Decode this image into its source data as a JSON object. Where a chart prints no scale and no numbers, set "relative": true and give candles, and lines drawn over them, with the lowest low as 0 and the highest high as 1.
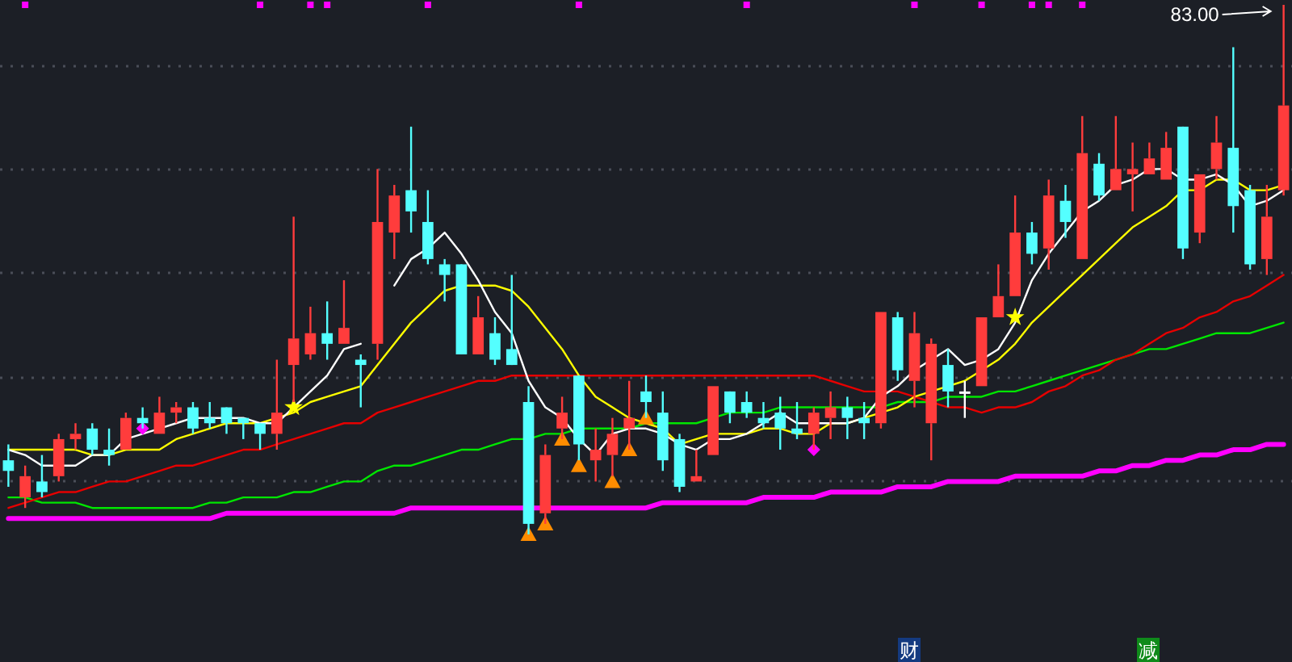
{
  "chart_data": {
    "type": "candlestick",
    "relative": true,
    "grid": "y",
    "categories": [
      null,
      null,
      null,
      null,
      null,
      null,
      null,
      null,
      null,
      null,
      null,
      null,
      null,
      null,
      null,
      null,
      null,
      null,
      null,
      null,
      null,
      null,
      null,
      null,
      null,
      null,
      null,
      null,
      null,
      null,
      null,
      null,
      null,
      null,
      null,
      null,
      null,
      null,
      null,
      null,
      null,
      null,
      null,
      null,
      null,
      null,
      null,
      null,
      null,
      null,
      null,
      null,
      null,
      null,
      null,
      null,
      null,
      null,
      null,
      null,
      null,
      null,
      null,
      null,
      null,
      null,
      null,
      null,
      null,
      null,
      null,
      null,
      null,
      null,
      null,
      null,
      null
    ],
    "ohlc": [
      [
        0.14,
        0.17,
        0.09,
        0.12
      ],
      [
        0.07,
        0.13,
        0.05,
        0.11
      ],
      [
        0.1,
        0.15,
        0.07,
        0.08
      ],
      [
        0.11,
        0.19,
        0.1,
        0.18
      ],
      [
        0.18,
        0.21,
        0.16,
        0.19
      ],
      [
        0.2,
        0.21,
        0.15,
        0.16
      ],
      [
        0.16,
        0.2,
        0.13,
        0.15
      ],
      [
        0.16,
        0.23,
        0.16,
        0.22
      ],
      [
        0.22,
        0.24,
        0.2,
        0.21
      ],
      [
        0.19,
        0.26,
        0.19,
        0.23
      ],
      [
        0.23,
        0.25,
        0.21,
        0.24
      ],
      [
        0.24,
        0.25,
        0.19,
        0.2
      ],
      [
        0.22,
        0.25,
        0.2,
        0.21
      ],
      [
        0.24,
        0.24,
        0.19,
        0.21
      ],
      [
        0.22,
        0.22,
        0.18,
        0.21
      ],
      [
        0.21,
        0.21,
        0.16,
        0.19
      ],
      [
        0.19,
        0.33,
        0.16,
        0.23
      ],
      [
        0.32,
        0.6,
        0.25,
        0.37
      ],
      [
        0.34,
        0.43,
        0.33,
        0.38
      ],
      [
        0.38,
        0.44,
        0.33,
        0.36
      ],
      [
        0.36,
        0.48,
        0.36,
        0.39
      ],
      [
        0.33,
        0.34,
        0.24,
        0.32
      ],
      [
        0.36,
        0.69,
        0.33,
        0.59
      ],
      [
        0.57,
        0.66,
        0.52,
        0.64
      ],
      [
        0.65,
        0.77,
        0.57,
        0.61
      ],
      [
        0.59,
        0.65,
        0.51,
        0.52
      ],
      [
        0.51,
        0.52,
        0.44,
        0.49
      ],
      [
        0.51,
        0.51,
        0.34,
        0.34
      ],
      [
        0.34,
        0.45,
        0.34,
        0.41
      ],
      [
        0.38,
        0.41,
        0.32,
        0.33
      ],
      [
        0.35,
        0.49,
        0.32,
        0.32
      ],
      [
        0.25,
        0.28,
        0,
        0.02
      ],
      [
        0.04,
        0.17,
        0.02,
        0.15
      ],
      [
        0.2,
        0.26,
        0.18,
        0.23
      ],
      [
        0.3,
        0.3,
        0.14,
        0.17
      ],
      [
        0.14,
        0.2,
        0.1,
        0.16
      ],
      [
        0.15,
        0.22,
        0.11,
        0.19
      ],
      [
        0.2,
        0.29,
        0.16,
        0.22
      ],
      [
        0.27,
        0.3,
        0.22,
        0.25
      ],
      [
        0.23,
        0.27,
        0.12,
        0.14
      ],
      [
        0.18,
        0.19,
        0.08,
        0.09
      ],
      [
        0.1,
        0.16,
        0.1,
        0.11
      ],
      [
        0.15,
        0.28,
        0.15,
        0.28
      ],
      [
        0.27,
        0.27,
        0.21,
        0.23
      ],
      [
        0.25,
        0.27,
        0.22,
        0.23
      ],
      [
        0.22,
        0.25,
        0.2,
        0.21
      ],
      [
        0.23,
        0.26,
        0.16,
        0.2
      ],
      [
        0.2,
        0.25,
        0.18,
        0.19
      ],
      [
        0.19,
        0.24,
        0.16,
        0.23
      ],
      [
        0.22,
        0.27,
        0.18,
        0.24
      ],
      [
        0.24,
        0.26,
        0.18,
        0.22
      ],
      [
        0.22,
        0.25,
        0.18,
        0.21
      ],
      [
        0.21,
        0.42,
        0.2,
        0.42
      ],
      [
        0.41,
        0.42,
        0.29,
        0.31
      ],
      [
        0.29,
        0.42,
        0.24,
        0.38
      ],
      [
        0.21,
        0.37,
        0.14,
        0.36
      ],
      [
        0.32,
        0.35,
        0.24,
        0.27
      ],
      [
        0.27,
        0.29,
        0.22,
        0.27
      ],
      [
        0.28,
        0.41,
        0.28,
        0.41
      ],
      [
        0.41,
        0.51,
        0.41,
        0.45
      ],
      [
        0.45,
        0.64,
        0.45,
        0.57
      ],
      [
        0.57,
        0.59,
        0.51,
        0.53
      ],
      [
        0.54,
        0.67,
        0.5,
        0.64
      ],
      [
        0.63,
        0.66,
        0.56,
        0.59
      ],
      [
        0.52,
        0.79,
        0.52,
        0.72
      ],
      [
        0.7,
        0.72,
        0.63,
        0.64
      ],
      [
        0.65,
        0.79,
        0.65,
        0.69
      ],
      [
        0.68,
        0.74,
        0.61,
        0.69
      ],
      [
        0.68,
        0.74,
        0.68,
        0.71
      ],
      [
        0.67,
        0.76,
        0.67,
        0.73
      ],
      [
        0.77,
        0.77,
        0.52,
        0.54
      ],
      [
        0.57,
        0.68,
        0.55,
        0.68
      ],
      [
        0.69,
        0.79,
        0.67,
        0.74
      ],
      [
        0.73,
        0.92,
        0.57,
        0.62
      ],
      [
        0.65,
        0.66,
        0.5,
        0.51
      ],
      [
        0.52,
        0.66,
        0.49,
        0.6
      ],
      [
        0.65,
        1,
        0.64,
        0.81
      ]
    ],
    "colors": [
      "#54ffff",
      "#ff3c3c",
      "#54ffff",
      "#ff3c3c",
      "#ff3c3c",
      "#54ffff",
      "#54ffff",
      "#ff3c3c",
      "#54ffff",
      "#ff3c3c",
      "#ff3c3c",
      "#54ffff",
      "#54ffff",
      "#54ffff",
      "#54ffff",
      "#54ffff",
      "#ff3c3c",
      "#ff3c3c",
      "#ff3c3c",
      "#54ffff",
      "#ff3c3c",
      "#54ffff",
      "#ff3c3c",
      "#ff3c3c",
      "#54ffff",
      "#54ffff",
      "#54ffff",
      "#54ffff",
      "#ff3c3c",
      "#54ffff",
      "#54ffff",
      "#54ffff",
      "#ff3c3c",
      "#ff3c3c",
      "#54ffff",
      "#ff3c3c",
      "#ff3c3c",
      "#ff3c3c",
      "#54ffff",
      "#54ffff",
      "#54ffff",
      "#ff3c3c",
      "#ff3c3c",
      "#54ffff",
      "#54ffff",
      "#54ffff",
      "#54ffff",
      "#54ffff",
      "#ff3c3c",
      "#ff3c3c",
      "#54ffff",
      "#54ffff",
      "#ff3c3c",
      "#54ffff",
      "#ff3c3c",
      "#ff3c3c",
      "#54ffff",
      "#ffffff",
      "#ff3c3c",
      "#ff3c3c",
      "#ff3c3c",
      "#54ffff",
      "#ff3c3c",
      "#54ffff",
      "#ff3c3c",
      "#54ffff",
      "#ff3c3c",
      "#ff3c3c",
      "#ff3c3c",
      "#ff3c3c",
      "#54ffff",
      "#ff3c3c",
      "#ff3c3c",
      "#54ffff",
      "#54ffff",
      "#ff3c3c",
      "#ff3c3c"
    ],
    "series": [
      {
        "type": "line",
        "color": "#ff00ff",
        "values": [
          0.03,
          0.03,
          0.03,
          0.03,
          0.03,
          0.03,
          0.03,
          0.03,
          0.03,
          0.03,
          0.03,
          0.03,
          0.03,
          0.04,
          0.04,
          0.04,
          0.04,
          0.04,
          0.04,
          0.04,
          0.04,
          0.04,
          0.04,
          0.04,
          0.05,
          0.05,
          0.05,
          0.05,
          0.05,
          0.05,
          0.05,
          0.05,
          0.05,
          0.05,
          0.05,
          0.05,
          0.05,
          0.05,
          0.05,
          0.06,
          0.06,
          0.06,
          0.06,
          0.06,
          0.06,
          0.07,
          0.07,
          0.07,
          0.07,
          0.08,
          0.08,
          0.08,
          0.08,
          0.09,
          0.09,
          0.09,
          0.1,
          0.1,
          0.1,
          0.1,
          0.11,
          0.11,
          0.11,
          0.11,
          0.11,
          0.12,
          0.12,
          0.13,
          0.13,
          0.14,
          0.14,
          0.15,
          0.15,
          0.16,
          0.16,
          0.17,
          0.17
        ]
      },
      {
        "type": "line",
        "color": "#00e600",
        "values": [
          0.07,
          0.07,
          0.06,
          0.06,
          0.06,
          0.05,
          0.05,
          0.05,
          0.05,
          0.05,
          0.05,
          0.05,
          0.06,
          0.06,
          0.07,
          0.07,
          0.07,
          0.08,
          0.08,
          0.09,
          0.1,
          0.1,
          0.12,
          0.13,
          0.13,
          0.14,
          0.15,
          0.16,
          0.16,
          0.17,
          0.18,
          0.18,
          0.19,
          0.19,
          0.2,
          0.2,
          0.2,
          0.2,
          0.21,
          0.21,
          0.21,
          0.21,
          0.22,
          0.23,
          0.23,
          0.23,
          0.24,
          0.24,
          0.24,
          0.24,
          0.24,
          0.24,
          0.24,
          0.25,
          0.25,
          0.25,
          0.26,
          0.26,
          0.26,
          0.27,
          0.27,
          0.28,
          0.29,
          0.3,
          0.31,
          0.32,
          0.33,
          0.34,
          0.35,
          0.35,
          0.36,
          0.37,
          0.38,
          0.38,
          0.38,
          0.39,
          0.4
        ]
      },
      {
        "type": "line",
        "color": "#e60000",
        "values": [
          0.05,
          0.06,
          0.07,
          0.08,
          0.08,
          0.09,
          0.1,
          0.1,
          0.11,
          0.12,
          0.13,
          0.13,
          0.14,
          0.15,
          0.16,
          0.16,
          0.17,
          0.18,
          0.19,
          0.2,
          0.21,
          0.21,
          0.23,
          0.24,
          0.25,
          0.26,
          0.27,
          0.28,
          0.29,
          0.29,
          0.3,
          0.3,
          0.3,
          0.3,
          0.3,
          0.3,
          0.3,
          0.3,
          0.3,
          0.3,
          0.3,
          0.3,
          0.3,
          0.3,
          0.3,
          0.3,
          0.3,
          0.3,
          0.3,
          0.29,
          0.28,
          0.27,
          0.27,
          0.27,
          0.26,
          0.25,
          0.24,
          0.24,
          0.23,
          0.24,
          0.24,
          0.25,
          0.27,
          0.28,
          0.3,
          0.31,
          0.33,
          0.34,
          0.36,
          0.38,
          0.39,
          0.41,
          0.42,
          0.44,
          0.45,
          0.47,
          0.49
        ]
      },
      {
        "type": "line",
        "color": "#ffff00",
        "values": [
          0.16,
          0.16,
          0.16,
          0.16,
          0.16,
          0.15,
          0.15,
          0.16,
          0.16,
          0.16,
          0.18,
          0.19,
          0.2,
          0.21,
          0.21,
          0.21,
          0.22,
          0.23,
          0.25,
          0.26,
          0.27,
          0.28,
          0.32,
          0.36,
          0.4,
          0.43,
          0.46,
          0.47,
          0.47,
          0.47,
          0.46,
          0.43,
          0.39,
          0.35,
          0.3,
          0.26,
          0.24,
          0.22,
          0.21,
          0.2,
          0.17,
          0.18,
          0.19,
          0.19,
          0.19,
          0.2,
          0.2,
          0.19,
          0.19,
          0.21,
          0.21,
          0.22,
          0.23,
          0.24,
          0.26,
          0.27,
          0.28,
          0.29,
          0.31,
          0.33,
          0.36,
          0.4,
          0.43,
          0.46,
          0.49,
          0.52,
          0.55,
          0.58,
          0.6,
          0.62,
          0.65,
          0.65,
          0.67,
          0.67,
          0.65,
          0.65,
          0.66
        ]
      },
      {
        "type": "line",
        "color": "#ffffff",
        "values": [
          0.16,
          0.15,
          0.13,
          0.13,
          0.13,
          0.15,
          0.15,
          0.18,
          0.19,
          0.2,
          0.21,
          0.22,
          0.22,
          0.22,
          0.22,
          0.21,
          0.21,
          0.24,
          0.27,
          0.3,
          0.35,
          0.36,
          null,
          0.47,
          0.52,
          0.54,
          0.57,
          0.53,
          0.48,
          0.42,
          0.38,
          0.29,
          0.24,
          0.22,
          0.18,
          0.15,
          0.19,
          0.2,
          0.2,
          0.19,
          0.17,
          0.16,
          0.18,
          0.18,
          0.19,
          0.21,
          0.23,
          0.21,
          0.21,
          0.21,
          0.21,
          0.22,
          0.26,
          0.28,
          0.31,
          0.33,
          0.35,
          0.32,
          0.33,
          0.35,
          0.4,
          0.48,
          0.53,
          0.57,
          0.61,
          0.63,
          0.66,
          0.67,
          0.69,
          0.69,
          0.67,
          0.67,
          0.68,
          0.66,
          0.62,
          0.63,
          0.65
        ]
      },
      {
        "type": "scatter",
        "marker": "triangle",
        "color": "#ff8c00",
        "values": [
          null,
          null,
          null,
          null,
          null,
          null,
          null,
          null,
          null,
          null,
          null,
          null,
          null,
          null,
          null,
          null,
          null,
          null,
          null,
          null,
          null,
          null,
          null,
          null,
          null,
          null,
          null,
          null,
          null,
          null,
          null,
          0,
          0.02,
          0.18,
          0.13,
          null,
          0.1,
          0.16,
          0.22,
          null,
          null,
          null,
          null,
          null,
          null,
          null,
          null,
          null,
          null,
          null,
          null,
          null,
          null,
          null,
          null,
          null,
          null,
          null,
          null,
          null,
          null,
          null,
          null,
          null,
          null,
          null,
          null,
          null,
          null,
          null,
          null,
          null,
          null,
          null,
          null,
          null,
          null
        ]
      },
      {
        "type": "scatter",
        "marker": "star",
        "color": "#ffff00",
        "values": [
          null,
          null,
          null,
          null,
          null,
          null,
          null,
          null,
          null,
          null,
          null,
          null,
          null,
          null,
          null,
          null,
          null,
          0.24,
          null,
          null,
          null,
          null,
          null,
          null,
          null,
          null,
          null,
          null,
          null,
          null,
          null,
          null,
          null,
          null,
          null,
          null,
          null,
          null,
          null,
          null,
          null,
          null,
          null,
          null,
          null,
          null,
          null,
          null,
          null,
          null,
          null,
          null,
          null,
          null,
          null,
          null,
          null,
          null,
          null,
          null,
          0.41,
          null,
          null,
          null,
          null,
          null,
          null,
          null,
          null,
          null,
          null,
          null,
          null,
          null,
          null,
          null,
          null
        ]
      },
      {
        "type": "scatter",
        "marker": "diamond",
        "color": "#ff00ff",
        "values": [
          null,
          null,
          null,
          null,
          null,
          null,
          null,
          null,
          0.2,
          null,
          null,
          null,
          null,
          null,
          null,
          null,
          null,
          null,
          null,
          null,
          null,
          null,
          null,
          null,
          null,
          null,
          null,
          null,
          null,
          null,
          null,
          null,
          null,
          null,
          null,
          null,
          null,
          null,
          null,
          null,
          null,
          null,
          null,
          null,
          null,
          null,
          null,
          null,
          0.16,
          null,
          null,
          null,
          null,
          null,
          null,
          null,
          null,
          null,
          null,
          null,
          null,
          null,
          null,
          null,
          null,
          null,
          null,
          null,
          null,
          null,
          null,
          null,
          null,
          null,
          null,
          null,
          null
        ]
      },
      {
        "type": "scatter",
        "marker": "square",
        "color": "#ff00ff",
        "values": [
          null,
          1,
          null,
          null,
          null,
          null,
          null,
          null,
          null,
          null,
          null,
          null,
          null,
          null,
          null,
          1,
          null,
          null,
          1,
          1,
          null,
          null,
          null,
          null,
          null,
          1,
          null,
          null,
          null,
          null,
          null,
          null,
          null,
          null,
          1,
          null,
          null,
          null,
          null,
          null,
          null,
          null,
          null,
          null,
          1,
          null,
          null,
          null,
          null,
          null,
          null,
          null,
          null,
          null,
          1,
          null,
          null,
          null,
          1,
          null,
          null,
          1,
          1,
          null,
          1,
          null,
          null,
          null,
          null,
          null,
          null,
          null,
          null,
          null,
          null,
          null,
          null
        ]
      }
    ],
    "annotations": [
      "83.00",
      "财",
      "减"
    ]
  }
}
